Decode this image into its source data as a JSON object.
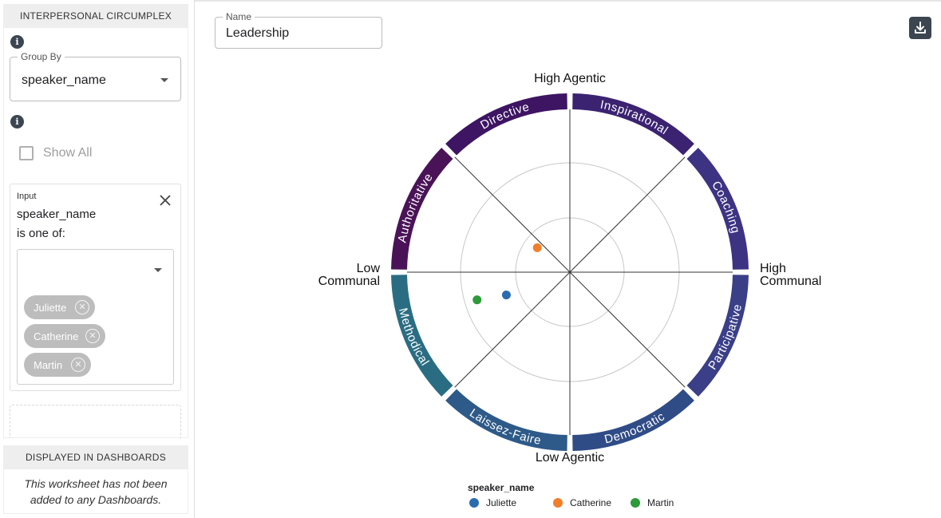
{
  "sidebar": {
    "circumplex_header": "INTERPERSONAL CIRCUMPLEX",
    "group_by": {
      "label": "Group By",
      "value": "speaker_name"
    },
    "show_all_label": "Show All",
    "filter": {
      "title": "Input",
      "field": "speaker_name",
      "operator": "is one of:",
      "chips": [
        "Juliette",
        "Catherine",
        "Martin"
      ]
    },
    "dashboards_header": "DISPLAYED IN DASHBOARDS",
    "dashboards_message": "This worksheet has not been added to any Dashboards."
  },
  "main": {
    "name_field": {
      "label": "Name",
      "value": "Leadership"
    },
    "download_icon": "download-icon"
  },
  "chart_data": {
    "type": "scatter",
    "axes": {
      "top": "High Agentic",
      "bottom": "Low Agentic",
      "left": [
        "Low",
        "Communal"
      ],
      "right": [
        "High",
        "Communal"
      ]
    },
    "xlim": [
      -1,
      1
    ],
    "ylim": [
      -1,
      1
    ],
    "grid_rings": [
      0.25,
      0.5,
      0.75
    ],
    "segments": [
      {
        "label": "Inspirational",
        "color": "#3b2371"
      },
      {
        "label": "Coaching",
        "color": "#3d3383"
      },
      {
        "label": "Participative",
        "color": "#3a3f88"
      },
      {
        "label": "Democratic",
        "color": "#2f4c86"
      },
      {
        "label": "Laissez-Faire",
        "color": "#2d5a88"
      },
      {
        "label": "Methodical",
        "color": "#2a6d83"
      },
      {
        "label": "Authoritative",
        "color": "#4a1357"
      },
      {
        "label": "Directive",
        "color": "#3d1563"
      }
    ],
    "series": [
      {
        "name": "Juliette",
        "color": "#2b6cb0",
        "x": -0.39,
        "y": -0.14
      },
      {
        "name": "Catherine",
        "color": "#f07f2c",
        "x": -0.2,
        "y": 0.15
      },
      {
        "name": "Martin",
        "color": "#2e9a3a",
        "x": -0.57,
        "y": -0.17
      }
    ],
    "legend_title": "speaker_name",
    "legend_position": "bottom"
  }
}
